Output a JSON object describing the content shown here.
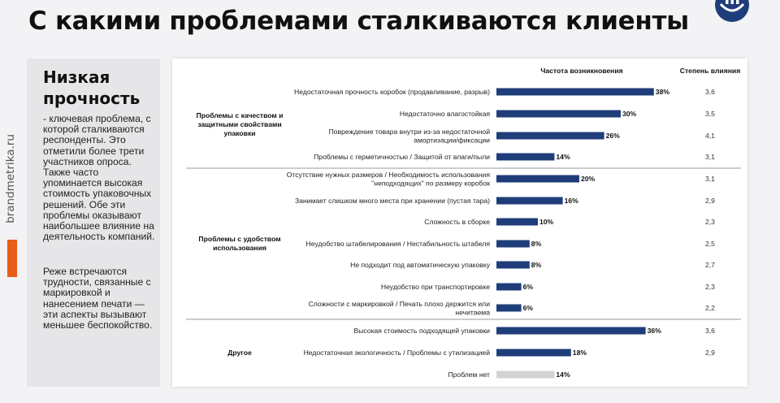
{
  "page": {
    "title": "С какими проблемами сталкиваются клиенты",
    "brand_side": "brandmetrika.ru",
    "accent_color": "#e85d1a",
    "logo_icon": "brand-logo-icon"
  },
  "left_panel": {
    "heading": "Низкая прочность",
    "paragraph1": "- ключевая проблема, с которой сталкиваются респонденты. Это отметили более трети участников опроса. Также часто упоминается высокая стоимость упаковочных решений. Обе эти проблемы оказывают наибольшее влияние на деятельность компаний.",
    "paragraph2": "Реже встречаются трудности, связанные с маркировкой и нанесением печати — эти аспекты вызывают меньшее беспокойство."
  },
  "chart_data": {
    "type": "bar",
    "orientation": "horizontal",
    "col_freq_header": "Частота возникновения",
    "col_impact_header": "Степень влияния",
    "bar_color": "#1f3d7a",
    "bar_color_muted": "#d3d3d3",
    "value_suffix": "%",
    "xlim": [
      0,
      40
    ],
    "groups": [
      {
        "label": "Проблемы с качеством и защитными свойствами упаковки",
        "items": [
          {
            "label": "Недостаточная прочность коробок (продавливание, разрыв)",
            "value": 38,
            "impact": "3,6"
          },
          {
            "label": "Недостаточно влагостойкая",
            "value": 30,
            "impact": "3,5"
          },
          {
            "label": "Повреждение товара внутри из-за недостаточной амортизации/фиксации",
            "value": 26,
            "impact": "4,1"
          },
          {
            "label": "Проблемы с герметичностью / Защитой от влаги/пыли",
            "value": 14,
            "impact": "3,1"
          }
        ]
      },
      {
        "label": "Проблемы с удобством использования",
        "items": [
          {
            "label": "Отсутствие нужных размеров / Необходимость использования \"неподходящих\" по размеру коробок",
            "value": 20,
            "impact": "3,1"
          },
          {
            "label": "Занимает слишком много места при хранении (пустая тара)",
            "value": 16,
            "impact": "2,9"
          },
          {
            "label": "Сложность в сборке",
            "value": 10,
            "impact": "2,3"
          },
          {
            "label": "Неудобство штабелирования / Нестабильность штабеля",
            "value": 8,
            "impact": "2,5"
          },
          {
            "label": "Не подходит под автоматическую упаковку",
            "value": 8,
            "impact": "2,7"
          },
          {
            "label": "Неудобство при транспортировке",
            "value": 6,
            "impact": "2,3"
          },
          {
            "label": "Сложности с маркировкой / Печать плохо держится или нечитаема",
            "value": 6,
            "impact": "2,2"
          }
        ]
      },
      {
        "label": "Другое",
        "items": [
          {
            "label": "Высокая стоимость подходящей упаковки",
            "value": 36,
            "impact": "3,6"
          },
          {
            "label": "Недостаточная экологичность / Проблемы с утилизацией",
            "value": 18,
            "impact": "2,9"
          },
          {
            "label": "Проблем нет",
            "value": 14,
            "impact": "",
            "muted": true
          }
        ]
      }
    ]
  }
}
